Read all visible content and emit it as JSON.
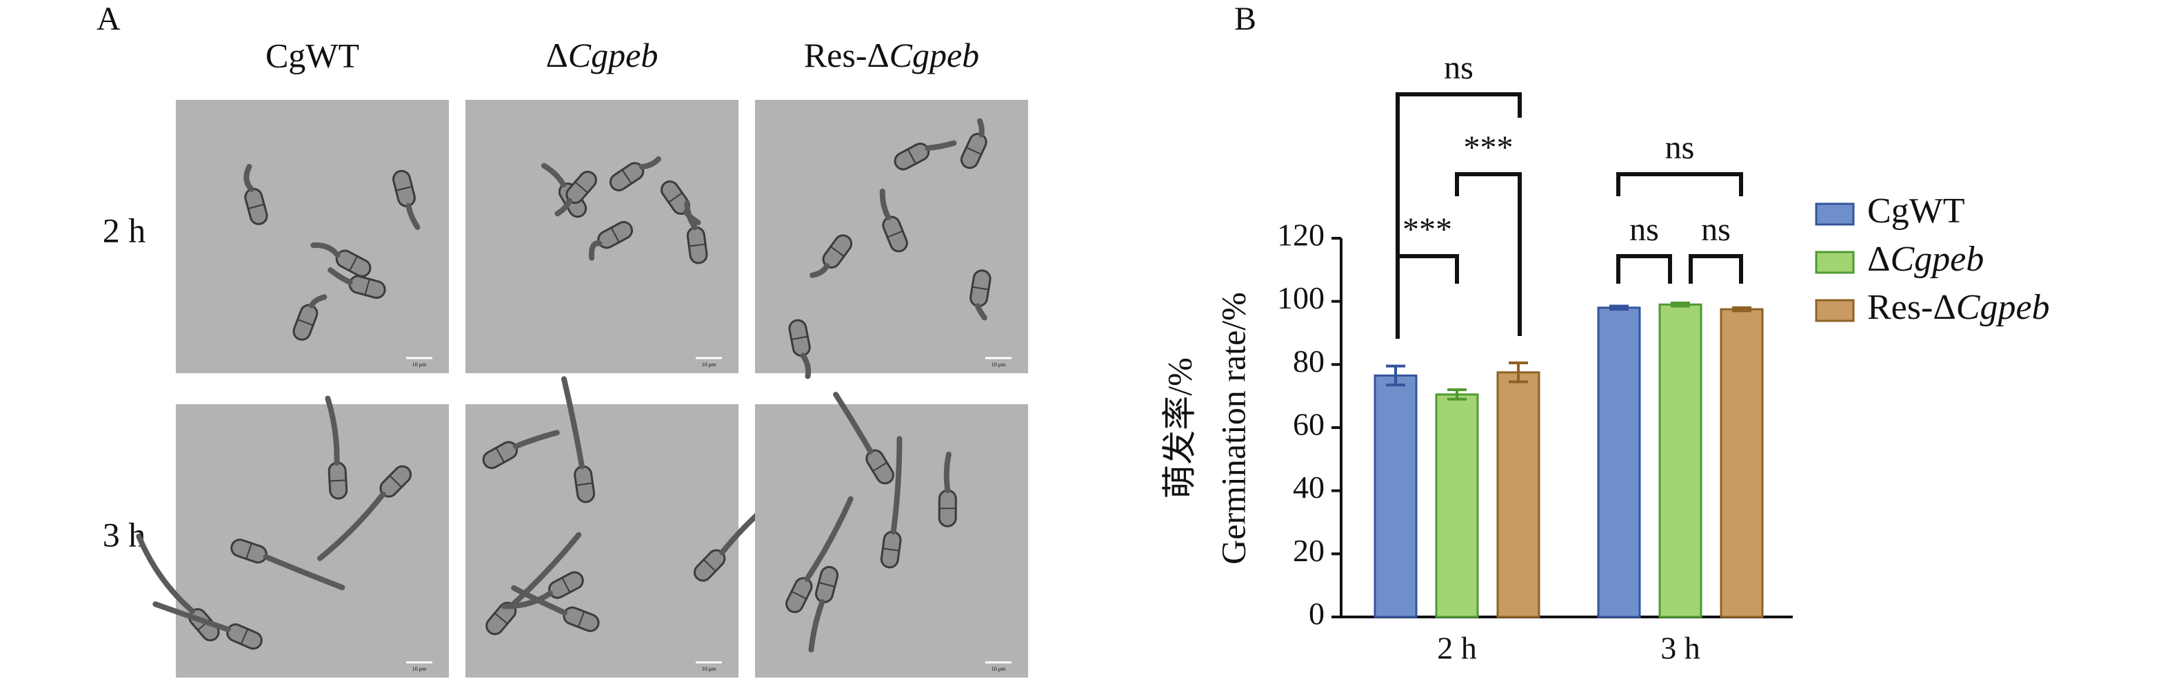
{
  "panel_a": {
    "label": "A",
    "columns": [
      "CgWT",
      "ΔCgpeb",
      "Res-ΔCgpeb"
    ],
    "rows": [
      "2 h",
      "3 h"
    ],
    "scale_bar_label": "10 μm"
  },
  "chart_data": {
    "type": "bar",
    "panel_label": "B",
    "y_label_lines": [
      "萌发率/%",
      "Germination rate/%"
    ],
    "categories": [
      "2 h",
      "3 h"
    ],
    "series": [
      {
        "name": "CgWT",
        "color": "#6f8fcb",
        "label_color": "#34549c",
        "values": [
          76.5,
          98
        ],
        "errors": [
          3,
          0.5
        ]
      },
      {
        "name": "ΔCgpeb",
        "color": "#a2d474",
        "label_color": "#4f9a32",
        "values": [
          70.5,
          99
        ],
        "errors": [
          1.5,
          0.5
        ]
      },
      {
        "name": "Res-ΔCgpeb",
        "color": "#c99b62",
        "label_color": "#8e6226",
        "values": [
          77.5,
          97.5
        ],
        "errors": [
          3,
          0.5
        ]
      }
    ],
    "annotations": [
      "ns",
      "***",
      "***",
      "ns",
      "ns",
      "ns"
    ],
    "ylim": [
      0,
      120
    ],
    "yticks": [
      0,
      20,
      40,
      60,
      80,
      100,
      120
    ],
    "legend": "right"
  }
}
